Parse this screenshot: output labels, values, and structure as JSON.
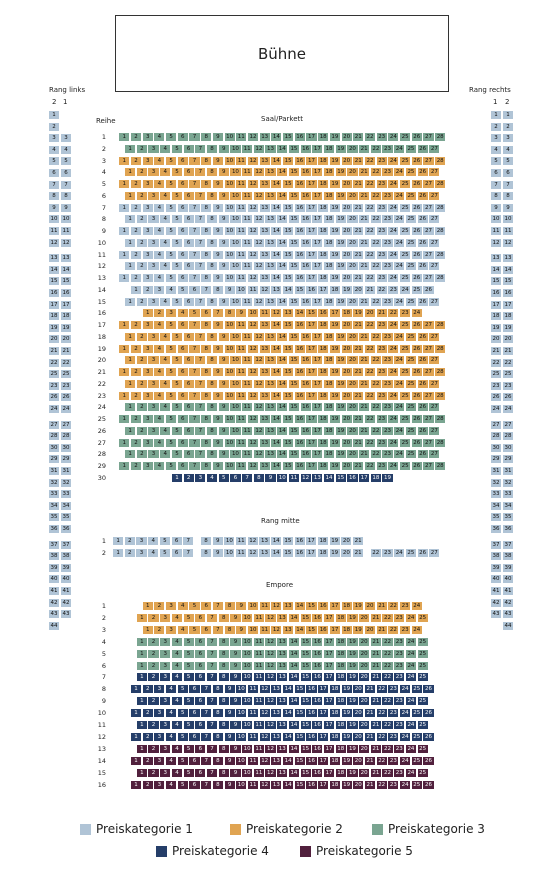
{
  "stage_label": "Bühne",
  "sections": {
    "rang_links": "Rang links",
    "rang_rechts": "Rang rechts",
    "saal": "Saal/Parkett",
    "reihe": "Reihe",
    "rang_mitte": "Rang mitte",
    "empore": "Empore"
  },
  "side_col_headers": {
    "left": [
      "2",
      "1"
    ],
    "right": [
      "1",
      "2"
    ]
  },
  "side_rows": [
    {
      "n": 1,
      "single": true
    },
    {
      "n": 2,
      "single": true
    },
    {
      "n": 3
    },
    {
      "n": 4
    },
    {
      "n": 5
    },
    {
      "n": 6
    },
    {
      "n": 7
    },
    {
      "n": 8
    },
    {
      "n": 9
    },
    {
      "n": 10
    },
    {
      "n": 11
    },
    {
      "n": 12
    },
    {
      "n": 13
    },
    {
      "n": 14
    },
    {
      "n": 15
    },
    {
      "n": 16
    },
    {
      "n": 17
    },
    {
      "n": 18
    },
    {
      "n": 19
    },
    {
      "n": 20
    },
    {
      "n": 21
    },
    {
      "n": 22
    },
    {
      "n": 25
    },
    {
      "n": 23
    },
    {
      "n": 26
    },
    {
      "n": 24
    },
    {
      "n": 27
    },
    {
      "n": 28
    },
    {
      "n": 30
    },
    {
      "n": 29
    },
    {
      "n": 31
    },
    {
      "n": 32
    },
    {
      "n": 33
    },
    {
      "n": 34
    },
    {
      "n": 35
    },
    {
      "n": 36
    },
    {
      "n": 37
    },
    {
      "n": 38
    },
    {
      "n": 39
    },
    {
      "n": 40
    },
    {
      "n": 41
    },
    {
      "n": 42
    },
    {
      "n": 43
    },
    {
      "n": 44,
      "single": true
    }
  ],
  "saal_rows": [
    {
      "row": 1,
      "cat": 3,
      "seats": 28
    },
    {
      "row": 2,
      "cat": 3,
      "seats": 27
    },
    {
      "row": 3,
      "cat": 2,
      "seats": 28
    },
    {
      "row": 4,
      "cat": 2,
      "seats": 27
    },
    {
      "row": 5,
      "cat": 2,
      "seats": 28
    },
    {
      "row": 6,
      "cat": 2,
      "seats": 27
    },
    {
      "row": 7,
      "cat": 1,
      "seats": 28
    },
    {
      "row": 8,
      "cat": 1,
      "seats": 27
    },
    {
      "row": 9,
      "cat": 1,
      "seats": 28
    },
    {
      "row": 10,
      "cat": 1,
      "seats": 27
    },
    {
      "row": 11,
      "cat": 1,
      "seats": 28
    },
    {
      "row": 12,
      "cat": 1,
      "seats": 27
    },
    {
      "row": 13,
      "cat": 1,
      "seats": 28
    },
    {
      "row": 14,
      "cat": 1,
      "seats": 26
    },
    {
      "row": 15,
      "cat": 1,
      "seats": 27
    },
    {
      "row": 16,
      "cat": 2,
      "seats": 24
    },
    {
      "row": 17,
      "cat": 2,
      "seats": 28
    },
    {
      "row": 18,
      "cat": 2,
      "seats": 27
    },
    {
      "row": 19,
      "cat": 2,
      "seats": 28
    },
    {
      "row": 20,
      "cat": 2,
      "seats": 27
    },
    {
      "row": 21,
      "cat": 2,
      "seats": 28
    },
    {
      "row": 22,
      "cat": 2,
      "seats": 27
    },
    {
      "row": 23,
      "cat": 2,
      "seats": 28
    },
    {
      "row": 24,
      "cat": 3,
      "seats": 27
    },
    {
      "row": 25,
      "cat": 3,
      "seats": 28
    },
    {
      "row": 26,
      "cat": 3,
      "seats": 27
    },
    {
      "row": 27,
      "cat": 3,
      "seats": 28
    },
    {
      "row": 28,
      "cat": 3,
      "seats": 27
    },
    {
      "row": 29,
      "cat": 3,
      "seats": 28
    },
    {
      "row": 30,
      "cat": 4,
      "seats": 19
    }
  ],
  "mitte_rows": [
    {
      "row": 1,
      "cat": 1,
      "seats": 21,
      "gap_after": 7
    },
    {
      "row": 2,
      "cat": 1,
      "seats": 27,
      "gap_after": 7,
      "gap2_after": 21
    }
  ],
  "empore_rows": [
    {
      "row": 1,
      "cat": 2,
      "seats": 24
    },
    {
      "row": 2,
      "cat": 2,
      "seats": 25
    },
    {
      "row": 3,
      "cat": 2,
      "seats": 24
    },
    {
      "row": 4,
      "cat": 3,
      "seats": 25
    },
    {
      "row": 5,
      "cat": 3,
      "seats": 25
    },
    {
      "row": 6,
      "cat": 3,
      "seats": 25
    },
    {
      "row": 7,
      "cat": 4,
      "seats": 25
    },
    {
      "row": 8,
      "cat": 4,
      "seats": 26
    },
    {
      "row": 9,
      "cat": 4,
      "seats": 25
    },
    {
      "row": 10,
      "cat": 4,
      "seats": 26
    },
    {
      "row": 11,
      "cat": 4,
      "seats": 25
    },
    {
      "row": 12,
      "cat": 4,
      "seats": 26
    },
    {
      "row": 13,
      "cat": 5,
      "seats": 25
    },
    {
      "row": 14,
      "cat": 5,
      "seats": 26
    },
    {
      "row": 15,
      "cat": 5,
      "seats": 25
    },
    {
      "row": 16,
      "cat": 5,
      "seats": 26
    }
  ],
  "legend": [
    {
      "label": "Preiskategorie 1",
      "color": "#b0c4d6"
    },
    {
      "label": "Preiskategorie 2",
      "color": "#e0a452"
    },
    {
      "label": "Preiskategorie 3",
      "color": "#7aa591"
    },
    {
      "label": "Preiskategorie 4",
      "color": "#253e69"
    },
    {
      "label": "Preiskategorie 5",
      "color": "#51203d"
    }
  ]
}
